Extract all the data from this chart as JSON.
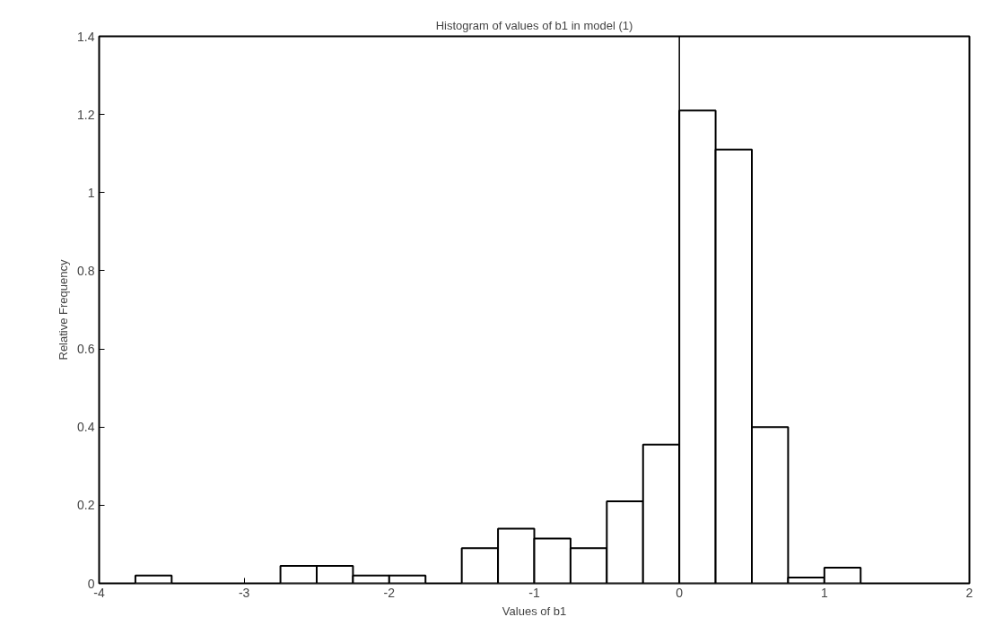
{
  "chart_data": {
    "type": "histogram",
    "title": "Histogram of values of b1 in model (1)",
    "xlabel": "Values of b1",
    "ylabel": "Relative Frequency",
    "bins": [
      -4,
      -3.75,
      -3.5,
      -3.25,
      -3,
      -2.75,
      -2.5,
      -2.25,
      -2,
      -1.75,
      -1.5,
      -1.25,
      -1,
      -0.75,
      -0.5,
      -0.25,
      0,
      0.25,
      0.5,
      0.75,
      1,
      1.25,
      1.5,
      1.75,
      2
    ],
    "values": [
      0,
      0.02,
      0,
      0,
      0,
      0.045,
      0.045,
      0.02,
      0.02,
      0,
      0.09,
      0.14,
      0.115,
      0.09,
      0.21,
      0.355,
      1.21,
      1.11,
      0.4,
      0.015,
      0.04,
      0,
      0,
      0
    ],
    "color": "#ffffff",
    "xlim": [
      -4,
      2
    ],
    "xticks": [
      -4,
      -3,
      -2,
      -1,
      0,
      1,
      2
    ],
    "ylim": [
      0,
      1.4
    ],
    "yticks": [
      0,
      0.2,
      0.4,
      0.6,
      0.8,
      1,
      1.2,
      1.4
    ],
    "ref_lines": [
      {
        "axis": "x",
        "value": 0,
        "label": null
      }
    ]
  }
}
